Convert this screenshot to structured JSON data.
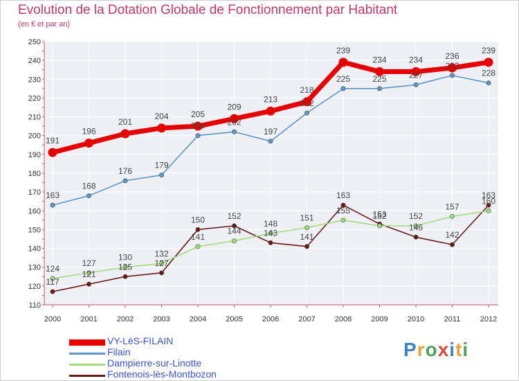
{
  "title": "Evolution de la Dotation Globale de Fonctionnement par Habitant",
  "subtitle": "(en € et par an)",
  "logo": {
    "text": "Proxiti"
  },
  "chart_data": {
    "type": "line",
    "title": "Evolution de la Dotation Globale de Fonctionnement par Habitant",
    "subtitle": "(en € et par an)",
    "x": [
      "2000",
      "2001",
      "2002",
      "2003",
      "2004",
      "2005",
      "2006",
      "2007",
      "2008",
      "2009",
      "2010",
      "2011",
      "2012"
    ],
    "ylim": [
      110,
      250
    ],
    "yticks": [
      110,
      120,
      130,
      140,
      150,
      160,
      170,
      180,
      190,
      200,
      210,
      220,
      230,
      240,
      250
    ],
    "grid": true,
    "legend_position": "bottom-left",
    "series": [
      {
        "name": "VY-LèS-FILAIN",
        "color": "#e60000",
        "values": [
          191,
          196,
          201,
          204,
          205,
          209,
          213,
          218,
          239,
          234,
          234,
          236,
          239
        ]
      },
      {
        "name": "Filain",
        "color": "#5b96c8",
        "values": [
          163,
          168,
          176,
          179,
          200,
          202,
          197,
          212,
          225,
          225,
          227,
          232,
          228
        ]
      },
      {
        "name": "Dampierre-sur-Linotte",
        "color": "#9fdc7c",
        "values": [
          124,
          127,
          130,
          132,
          141,
          144,
          148,
          151,
          155,
          152,
          152,
          157,
          160
        ]
      },
      {
        "name": "Fontenois-lès-Montbozon",
        "color": "#6b1a1a",
        "values": [
          117,
          121,
          125,
          127,
          150,
          152,
          143,
          141,
          163,
          153,
          146,
          142,
          163
        ]
      }
    ]
  }
}
